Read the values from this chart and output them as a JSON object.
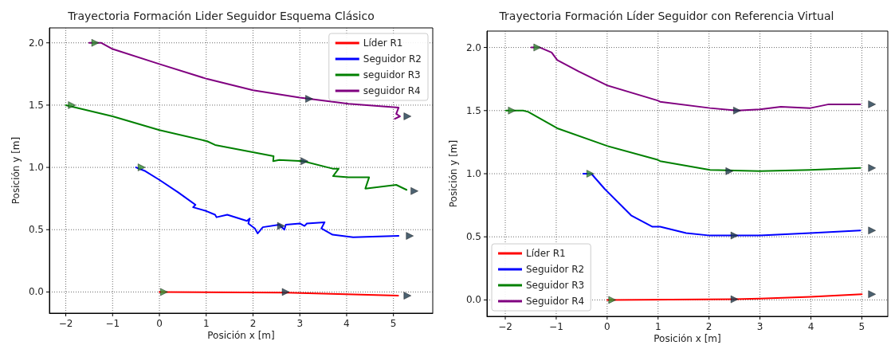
{
  "chart_data": [
    {
      "type": "line",
      "title": "Trayectoria Formación Lider Seguidor Esquema Clásico",
      "xlabel": "Posición x [m]",
      "ylabel": "Posición y [m]",
      "xlim": [
        -2.35,
        5.84
      ],
      "ylim": [
        -0.17,
        2.12
      ],
      "xticks": [
        -2,
        -1,
        0,
        1,
        2,
        3,
        4,
        5
      ],
      "yticks": [
        {
          "value": 0,
          "label": "0.0"
        },
        {
          "value": 0.5,
          "label": "0.5"
        },
        {
          "value": 1,
          "label": "1.0"
        },
        {
          "value": 1.5,
          "label": "1.5"
        },
        {
          "value": 2,
          "label": "2.0"
        }
      ],
      "grid": true,
      "legend": "top right",
      "marker": "none",
      "series": [
        {
          "name": "Líder R1",
          "color": "#ff0000",
          "x": [
            0,
            2.7,
            5.1
          ],
          "values": [
            0,
            -0.005,
            -0.03
          ]
        },
        {
          "name": "Seguidor R2",
          "color": "#0000ff",
          "x": [
            -0.5,
            -0.3,
            0,
            0.4,
            0.77,
            0.72,
            1.0,
            1.19,
            1.22,
            1.45,
            1.87,
            1.93,
            1.9,
            2.04,
            2.1,
            2.21,
            2.56,
            2.67,
            2.7,
            3.0,
            3.1,
            3.15,
            3.53,
            3.46,
            3.7,
            4.14,
            5.11
          ],
          "values": [
            1.0,
            0.97,
            0.9,
            0.8,
            0.7,
            0.68,
            0.65,
            0.62,
            0.6,
            0.62,
            0.57,
            0.59,
            0.55,
            0.51,
            0.47,
            0.52,
            0.54,
            0.5,
            0.54,
            0.55,
            0.53,
            0.55,
            0.56,
            0.51,
            0.46,
            0.44,
            0.45
          ]
        },
        {
          "name": "seguidor R3",
          "color": "#008000",
          "x": [
            -2.0,
            -1.0,
            0,
            1.02,
            1.19,
            2.44,
            2.43,
            2.56,
            3.07,
            3.7,
            3.83,
            3.71,
            4.04,
            4.48,
            4.4,
            5.06,
            5.28
          ],
          "values": [
            1.5,
            1.41,
            1.3,
            1.21,
            1.18,
            1.09,
            1.05,
            1.06,
            1.05,
            0.99,
            0.99,
            0.93,
            0.92,
            0.92,
            0.83,
            0.86,
            0.82
          ]
        },
        {
          "name": "seguidor R4",
          "color": "#800080",
          "x": [
            -1.5,
            -1.24,
            -1.0,
            0,
            1.02,
            2.0,
            3.0,
            4.04,
            5.11,
            5.06,
            5.14,
            5.03
          ],
          "values": [
            2.0,
            2.0,
            1.95,
            1.83,
            1.71,
            1.62,
            1.56,
            1.51,
            1.48,
            1.43,
            1.41,
            1.39
          ]
        },
        {
          "type": "scatter",
          "marker": "triangle",
          "color": "#2e8b2e",
          "x": [
            0.1,
            -0.38,
            -1.87,
            -1.37
          ],
          "values": [
            0,
            1.0,
            1.5,
            2.0
          ]
        },
        {
          "type": "scatter",
          "marker": "triangle",
          "color": "#1f3b4d",
          "x": [
            2.7,
            2.6,
            3.1,
            3.2,
            5.3,
            5.35,
            5.45,
            5.3
          ],
          "values": [
            0,
            0.53,
            1.05,
            1.55,
            -0.03,
            0.45,
            0.81,
            1.41
          ]
        }
      ]
    },
    {
      "type": "line",
      "title": "Trayectoria Formación Líder Seguidor con Referencia Virtual",
      "xlabel": "Posición x [m]",
      "ylabel": "Posición y [m]",
      "xlim": [
        -2.36,
        5.51
      ],
      "ylim": [
        -0.13,
        2.13
      ],
      "xticks": [
        -2,
        -1,
        0,
        1,
        2,
        3,
        4,
        5
      ],
      "yticks": [
        {
          "value": 0,
          "label": "0.0"
        },
        {
          "value": 0.5,
          "label": "0.5"
        },
        {
          "value": 1,
          "label": "1.0"
        },
        {
          "value": 1.5,
          "label": "1.5"
        },
        {
          "value": 2,
          "label": "2.0"
        }
      ],
      "grid": true,
      "legend": "bottom left",
      "marker": "none",
      "series": [
        {
          "name": "Líder R1",
          "color": "#ff0000",
          "x": [
            0,
            2.5,
            3,
            4,
            5
          ],
          "values": [
            0,
            0.005,
            0.01,
            0.025,
            0.045
          ]
        },
        {
          "name": "Seguidor R2",
          "color": "#0000ff",
          "x": [
            -0.47,
            -0.31,
            -0.05,
            0.47,
            0.89,
            1.04,
            1.55,
            2.02,
            3.0,
            3.99,
            4.97
          ],
          "values": [
            1.0,
            1.0,
            0.88,
            0.67,
            0.58,
            0.58,
            0.53,
            0.51,
            0.51,
            0.53,
            0.55
          ]
        },
        {
          "name": "Seguidor R3",
          "color": "#008000",
          "x": [
            -1.99,
            -1.65,
            -1.55,
            -0.98,
            0,
            0.99,
            1.04,
            2.02,
            3.0,
            3.99,
            4.97
          ],
          "values": [
            1.5,
            1.5,
            1.49,
            1.36,
            1.22,
            1.11,
            1.1,
            1.03,
            1.02,
            1.03,
            1.045
          ]
        },
        {
          "name": "Seguidor R4",
          "color": "#800080",
          "x": [
            -1.49,
            -1.32,
            -1.09,
            -0.98,
            -0.56,
            0,
            0.99,
            1.04,
            2.02,
            2.55,
            3.0,
            3.41,
            3.99,
            4.35,
            4.97
          ],
          "values": [
            2.0,
            2.0,
            1.96,
            1.9,
            1.81,
            1.7,
            1.58,
            1.57,
            1.52,
            1.5,
            1.51,
            1.53,
            1.52,
            1.55,
            1.55
          ]
        },
        {
          "type": "scatter",
          "marker": "triangle",
          "color": "#2e8b2e",
          "x": [
            0.1,
            -0.33,
            -1.87,
            -1.37
          ],
          "values": [
            0,
            1.0,
            1.5,
            2.0
          ]
        },
        {
          "type": "scatter",
          "marker": "triangle",
          "color": "#1f3b4d",
          "x": [
            2.5,
            2.5,
            2.4,
            2.55,
            5.2,
            5.2,
            5.2,
            5.2
          ],
          "values": [
            0.005,
            0.51,
            1.02,
            1.5,
            0.045,
            0.55,
            1.045,
            1.55
          ]
        }
      ]
    }
  ]
}
